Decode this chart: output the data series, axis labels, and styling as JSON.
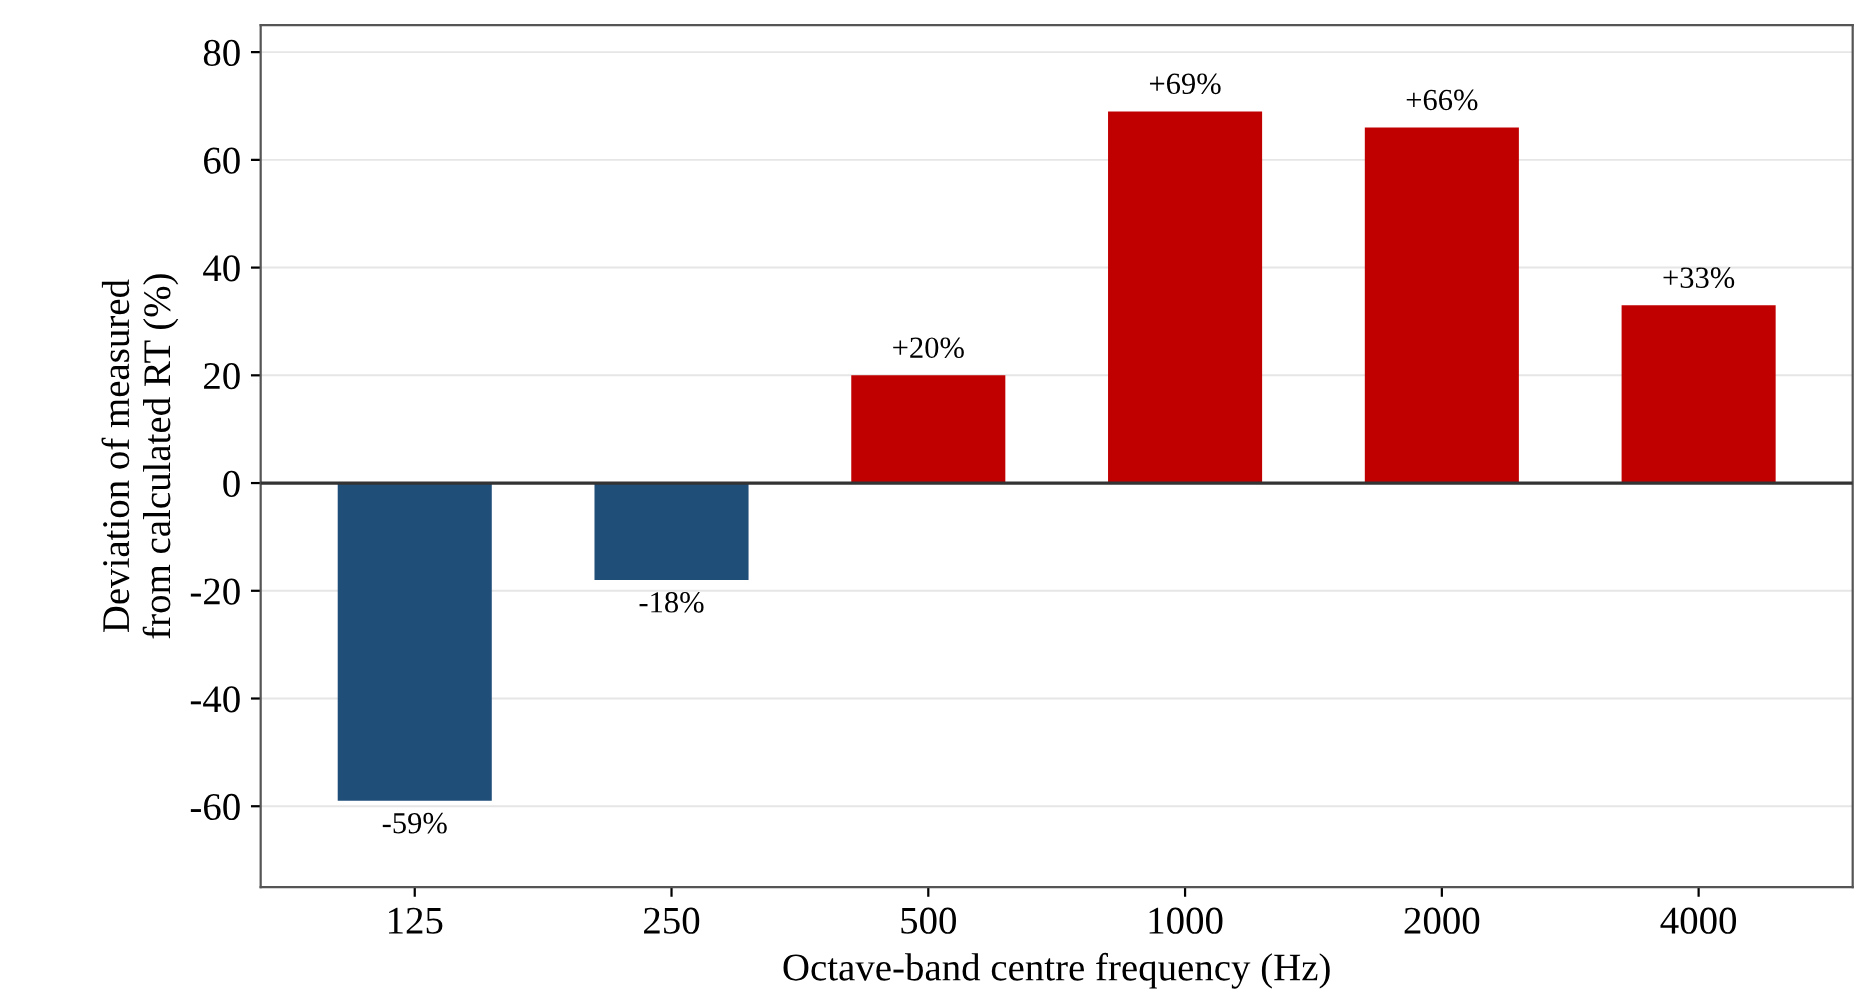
{
  "chart_data": {
    "type": "bar",
    "xlabel": "Octave-band centre frequency (Hz)",
    "ylabel": "Deviation of measured\nfrom calculated RT (%)",
    "categories": [
      "125",
      "250",
      "500",
      "1000",
      "2000",
      "4000"
    ],
    "values": [
      -59,
      -18,
      20,
      69,
      66,
      33
    ],
    "colors": [
      "#1f4e79",
      "#1f4e79",
      "#c00000",
      "#c00000",
      "#c00000",
      "#c00000"
    ],
    "value_labels": [
      "-59%",
      "-18%",
      "+20%",
      "+69%",
      "+66%",
      "+33%"
    ],
    "ylim": [
      -75,
      85
    ],
    "yticks": [
      -60,
      -40,
      -20,
      0,
      20,
      40,
      60,
      80
    ],
    "grid": "y",
    "ref_lines": [
      {
        "axis": "y",
        "value": 0,
        "color": "#333333",
        "line_style": "solid"
      }
    ]
  }
}
